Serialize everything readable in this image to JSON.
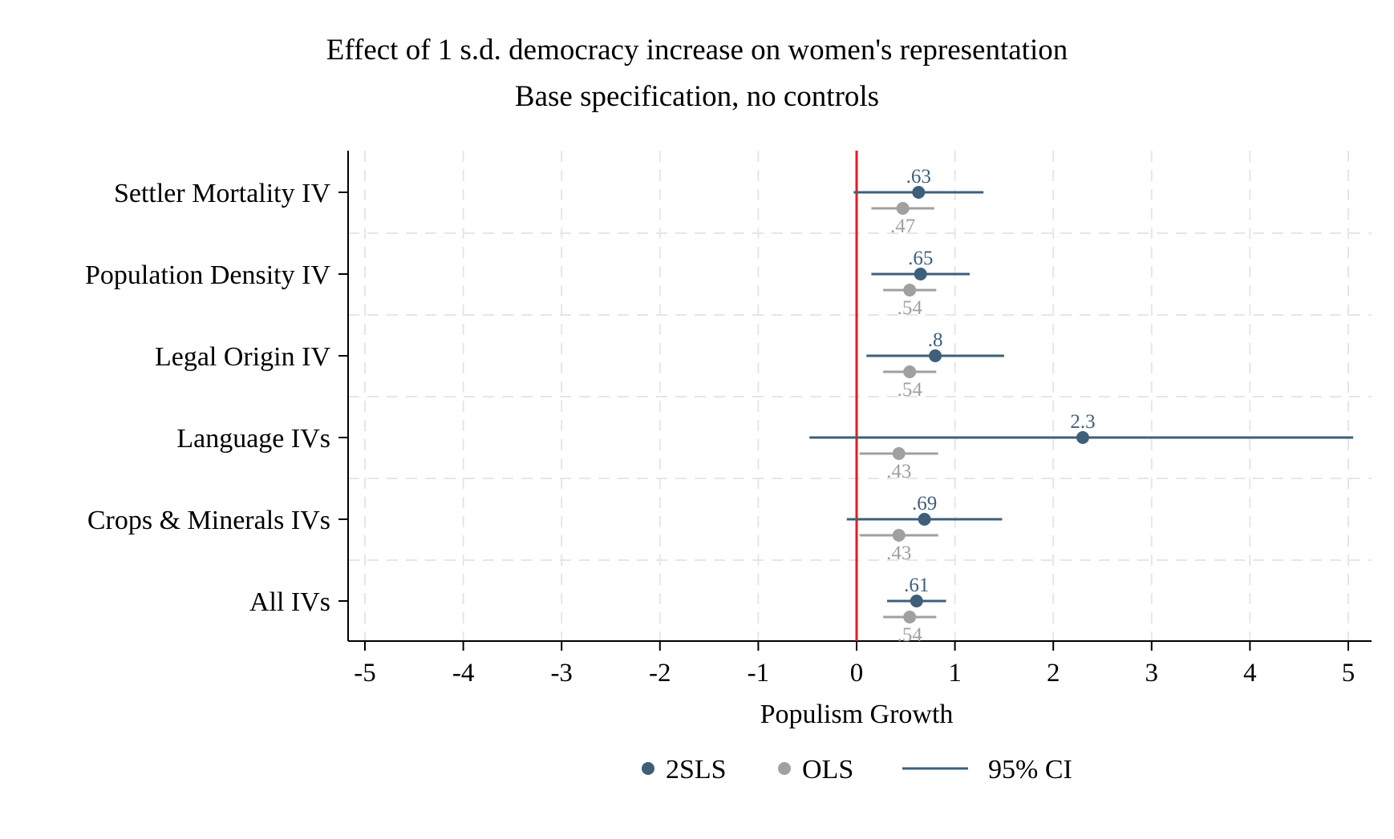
{
  "chart_data": {
    "type": "scatter",
    "subtype": "coefficient-plot-with-confidence-intervals",
    "title": "Effect of 1 s.d. democracy increase on women's representation",
    "subtitle": "Base specification, no controls",
    "xlabel": "Populism Growth",
    "ylabel": "",
    "xlim": [
      -5,
      5
    ],
    "xticks": [
      -5,
      -4,
      -3,
      -2,
      -1,
      0,
      1,
      2,
      3,
      4,
      5
    ],
    "xtick_labels": [
      "-5",
      "-4",
      "-3",
      "-2",
      "-1",
      "0",
      "1",
      "2",
      "3",
      "4",
      "5"
    ],
    "grid": true,
    "reference_line": {
      "x": 0,
      "color": "#e41a1c"
    },
    "categories": [
      "Settler Mortality IV",
      "Population Density IV",
      "Legal Origin IV",
      "Language IVs",
      "Crops & Minerals IVs",
      "All IVs"
    ],
    "series": [
      {
        "name": "2SLS",
        "color": "#3e5f7a",
        "values": [
          0.63,
          0.65,
          0.8,
          2.3,
          0.69,
          0.61
        ],
        "labels": [
          ".63",
          ".65",
          ".8",
          "2.3",
          ".69",
          ".61"
        ],
        "ci_low": [
          -0.03,
          0.15,
          0.1,
          -0.48,
          -0.1,
          0.31
        ],
        "ci_high": [
          1.29,
          1.15,
          1.5,
          5.05,
          1.48,
          0.91
        ]
      },
      {
        "name": "OLS",
        "color": "#a0a0a0",
        "values": [
          0.47,
          0.54,
          0.54,
          0.43,
          0.43,
          0.54
        ],
        "labels": [
          ".47",
          ".54",
          ".54",
          ".43",
          ".43",
          ".54"
        ],
        "ci_low": [
          0.15,
          0.27,
          0.27,
          0.03,
          0.03,
          0.27
        ],
        "ci_high": [
          0.79,
          0.81,
          0.81,
          0.83,
          0.83,
          0.81
        ]
      }
    ],
    "legend": {
      "position": "bottom",
      "entries": [
        {
          "label": "2SLS",
          "symbol": "dot",
          "color": "#3e5f7a"
        },
        {
          "label": "OLS",
          "symbol": "dot",
          "color": "#a0a0a0"
        },
        {
          "label": "95% CI",
          "symbol": "line",
          "color": "#3e5f7a"
        }
      ]
    }
  }
}
